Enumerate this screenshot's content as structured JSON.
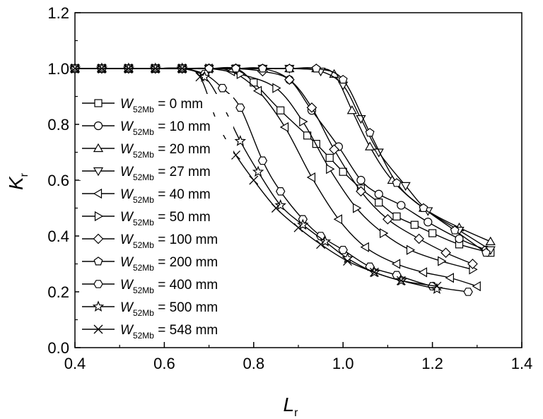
{
  "chart_data": {
    "type": "line",
    "xlabel": "L",
    "xlabel_sub": "r",
    "ylabel": "K",
    "ylabel_sub": "r",
    "xlim": [
      0.4,
      1.4
    ],
    "ylim": [
      0.0,
      1.2
    ],
    "xticks": [
      "0.4",
      "0.6",
      "0.8",
      "1.0",
      "1.2",
      "1.4"
    ],
    "yticks": [
      "0.0",
      "0.2",
      "0.4",
      "0.6",
      "0.8",
      "1.0",
      "1.2"
    ],
    "grid": false,
    "legend_position": "left",
    "series": [
      {
        "name": "W52Mb = 0 mm",
        "legend": {
          "symbol": "W",
          "sub": "52Mb",
          "rest": " = 0 mm"
        },
        "marker": "square",
        "x": [
          0.4,
          0.46,
          0.52,
          0.58,
          0.64,
          0.7,
          0.76,
          0.8,
          0.86,
          0.92,
          0.94,
          0.97,
          1.0,
          1.04,
          1.08,
          1.12,
          1.16,
          1.2,
          1.26,
          1.33
        ],
        "y": [
          1.0,
          1.0,
          1.0,
          1.0,
          1.0,
          1.0,
          1.0,
          0.95,
          0.85,
          0.76,
          0.73,
          0.68,
          0.63,
          0.57,
          0.52,
          0.47,
          0.44,
          0.41,
          0.37,
          0.34
        ]
      },
      {
        "name": "W52Mb = 10 mm",
        "legend": {
          "symbol": "W",
          "sub": "52Mb",
          "rest": " = 10 mm"
        },
        "marker": "circle",
        "x": [
          0.4,
          0.46,
          0.52,
          0.58,
          0.64,
          0.7,
          0.76,
          0.82,
          0.88,
          0.93,
          0.99,
          1.04,
          1.08,
          1.13,
          1.19,
          1.26,
          1.32
        ],
        "y": [
          1.0,
          1.0,
          1.0,
          1.0,
          1.0,
          1.0,
          1.0,
          1.0,
          0.96,
          0.85,
          0.72,
          0.6,
          0.55,
          0.51,
          0.45,
          0.39,
          0.35
        ]
      },
      {
        "name": "W52Mb = 20 mm",
        "legend": {
          "symbol": "W",
          "sub": "52Mb",
          "rest": " = 20 mm"
        },
        "marker": "triangle-up",
        "x": [
          0.4,
          0.46,
          0.52,
          0.58,
          0.64,
          0.7,
          0.76,
          0.82,
          0.88,
          0.94,
          0.98,
          1.02,
          1.06,
          1.11,
          1.18,
          1.26,
          1.33
        ],
        "y": [
          1.0,
          1.0,
          1.0,
          1.0,
          1.0,
          1.0,
          1.0,
          1.0,
          1.0,
          1.0,
          0.98,
          0.85,
          0.72,
          0.6,
          0.5,
          0.43,
          0.38
        ]
      },
      {
        "name": "W52Mb = 27 mm",
        "legend": {
          "symbol": "W",
          "sub": "52Mb",
          "rest": " = 27 mm"
        },
        "marker": "triangle-down",
        "x": [
          0.4,
          0.46,
          0.52,
          0.58,
          0.64,
          0.7,
          0.76,
          0.82,
          0.88,
          0.95,
          1.0,
          1.04,
          1.08,
          1.14,
          1.19,
          1.26,
          1.33
        ],
        "y": [
          1.0,
          1.0,
          1.0,
          1.0,
          1.0,
          1.0,
          1.0,
          1.0,
          1.0,
          0.99,
          0.94,
          0.82,
          0.7,
          0.58,
          0.49,
          0.42,
          0.35
        ]
      },
      {
        "name": "W52Mb = 40 mm",
        "legend": {
          "symbol": "W",
          "sub": "52Mb",
          "rest": " = 40 mm"
        },
        "marker": "triangle-left",
        "x": [
          0.4,
          0.46,
          0.52,
          0.58,
          0.64,
          0.7,
          0.75,
          0.81,
          0.87,
          0.93,
          0.99,
          1.05,
          1.12,
          1.18,
          1.24,
          1.3
        ],
        "y": [
          1.0,
          1.0,
          1.0,
          1.0,
          1.0,
          1.0,
          0.99,
          0.92,
          0.79,
          0.61,
          0.46,
          0.36,
          0.3,
          0.27,
          0.25,
          0.22
        ]
      },
      {
        "name": "W52Mb = 50 mm",
        "legend": {
          "symbol": "W",
          "sub": "52Mb",
          "rest": " = 50 mm"
        },
        "marker": "triangle-right",
        "x": [
          0.4,
          0.46,
          0.52,
          0.58,
          0.64,
          0.7,
          0.77,
          0.85,
          0.91,
          0.97,
          1.03,
          1.09,
          1.15,
          1.22,
          1.29
        ],
        "y": [
          1.0,
          1.0,
          1.0,
          1.0,
          1.0,
          1.0,
          0.98,
          0.93,
          0.81,
          0.64,
          0.5,
          0.41,
          0.35,
          0.31,
          0.28
        ]
      },
      {
        "name": "W52Mb = 100 mm",
        "legend": {
          "symbol": "W",
          "sub": "52Mb",
          "rest": " = 100 mm"
        },
        "marker": "diamond",
        "x": [
          0.4,
          0.46,
          0.52,
          0.58,
          0.64,
          0.7,
          0.76,
          0.82,
          0.88,
          0.93,
          0.98,
          1.04,
          1.1,
          1.17,
          1.23,
          1.29
        ],
        "y": [
          1.0,
          1.0,
          1.0,
          1.0,
          1.0,
          1.0,
          1.0,
          0.99,
          0.96,
          0.86,
          0.71,
          0.56,
          0.46,
          0.39,
          0.34,
          0.3
        ]
      },
      {
        "name": "W52Mb = 200 mm",
        "legend": {
          "symbol": "W",
          "sub": "52Mb",
          "rest": " = 200 mm"
        },
        "marker": "pentagon",
        "x": [
          0.4,
          0.46,
          0.52,
          0.58,
          0.64,
          0.7,
          0.76,
          0.82,
          0.88,
          0.94,
          1.0,
          1.06,
          1.12,
          1.18,
          1.25,
          1.32
        ],
        "y": [
          1.0,
          1.0,
          1.0,
          1.0,
          1.0,
          1.0,
          1.0,
          1.0,
          1.0,
          1.0,
          0.96,
          0.77,
          0.59,
          0.5,
          0.42,
          0.34
        ]
      },
      {
        "name": "W52Mb = 400 mm",
        "legend": {
          "symbol": "W",
          "sub": "52Mb",
          "rest": " = 400 mm"
        },
        "marker": "hexagon",
        "x": [
          0.4,
          0.46,
          0.52,
          0.58,
          0.64,
          0.69,
          0.73,
          0.77,
          0.82,
          0.86,
          0.91,
          0.95,
          1.0,
          1.06,
          1.12,
          1.2,
          1.28
        ],
        "y": [
          1.0,
          1.0,
          1.0,
          1.0,
          1.0,
          0.98,
          0.93,
          0.86,
          0.67,
          0.56,
          0.46,
          0.4,
          0.35,
          0.29,
          0.26,
          0.22,
          0.2
        ]
      },
      {
        "name": "W52Mb = 500 mm",
        "legend": {
          "symbol": "W",
          "sub": "52Mb",
          "rest": " = 500 mm"
        },
        "marker": "star",
        "x": [
          0.4,
          0.46,
          0.52,
          0.58,
          0.64,
          0.69,
          0.73,
          0.77,
          0.81,
          0.86,
          0.91,
          0.96,
          1.01,
          1.07,
          1.13,
          1.21
        ],
        "y": [
          1.0,
          1.0,
          1.0,
          1.0,
          1.0,
          0.97,
          0.87,
          0.74,
          0.63,
          0.51,
          0.44,
          0.38,
          0.32,
          0.27,
          0.24,
          0.21
        ]
      },
      {
        "name": "W52Mb = 548 mm",
        "legend": {
          "symbol": "W",
          "sub": "52Mb",
          "rest": " = 548 mm"
        },
        "marker": "x",
        "x": [
          0.4,
          0.46,
          0.52,
          0.58,
          0.64,
          0.68,
          0.72,
          0.76,
          0.8,
          0.85,
          0.9,
          0.95,
          1.01,
          1.07,
          1.13,
          1.21
        ],
        "y": [
          1.0,
          1.0,
          1.0,
          1.0,
          1.0,
          0.97,
          0.8,
          0.69,
          0.6,
          0.5,
          0.43,
          0.37,
          0.31,
          0.27,
          0.24,
          0.22
        ]
      }
    ]
  }
}
